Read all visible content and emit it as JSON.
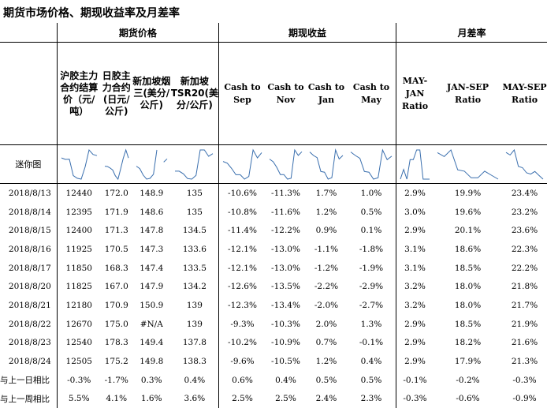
{
  "title": "期货市场价格、期现收益率及月差率",
  "groups": {
    "futures": "期货价格",
    "cash": "期现收益",
    "spread": "月差率"
  },
  "headers": [
    "沪胶主力合约结算价（元/吨）",
    "日胶主力合约(日元/公斤)",
    "新加坡烟三(美分/公斤)",
    "新加坡TSR20(美分/公斤)",
    "Cash to Sep",
    "Cash to Nov",
    "Cash to Jan",
    "Cash to May",
    "MAY-JAN Ratio",
    "JAN-SEP Ratio",
    "MAY-SEP Ratio"
  ],
  "sparkline_label": "迷你图",
  "rows": [
    [
      "2018/8/13",
      "12440",
      "172.0",
      "148.9",
      "135",
      "-10.6%",
      "-11.3%",
      "1.7%",
      "1.0%",
      "2.9%",
      "19.9%",
      "23.4%"
    ],
    [
      "2018/8/14",
      "12395",
      "171.9",
      "148.6",
      "135",
      "-10.8%",
      "-11.6%",
      "1.2%",
      "0.5%",
      "3.0%",
      "19.6%",
      "23.2%"
    ],
    [
      "2018/8/15",
      "12400",
      "171.3",
      "147.8",
      "134.5",
      "-11.4%",
      "-12.2%",
      "0.9%",
      "0.1%",
      "2.9%",
      "20.1%",
      "23.6%"
    ],
    [
      "2018/8/16",
      "11925",
      "170.5",
      "147.3",
      "133.6",
      "-12.1%",
      "-13.0%",
      "-1.1%",
      "-1.8%",
      "3.1%",
      "18.6%",
      "22.3%"
    ],
    [
      "2018/8/17",
      "11850",
      "168.3",
      "147.4",
      "133.5",
      "-12.1%",
      "-13.0%",
      "-1.2%",
      "-1.9%",
      "3.1%",
      "18.5%",
      "22.2%"
    ],
    [
      "2018/8/20",
      "11825",
      "167.0",
      "147.9",
      "134.2",
      "-12.6%",
      "-13.5%",
      "-2.2%",
      "-2.9%",
      "3.2%",
      "18.0%",
      "21.8%"
    ],
    [
      "2018/8/21",
      "12180",
      "170.9",
      "150.9",
      "139",
      "-12.3%",
      "-13.4%",
      "-2.0%",
      "-2.7%",
      "3.2%",
      "18.0%",
      "21.7%"
    ],
    [
      "2018/8/22",
      "12670",
      "175.0",
      "#N/A",
      "139",
      "-9.3%",
      "-10.3%",
      "2.0%",
      "1.3%",
      "2.9%",
      "18.5%",
      "21.9%"
    ],
    [
      "2018/8/23",
      "12540",
      "178.3",
      "149.4",
      "137.8",
      "-10.2%",
      "-10.9%",
      "0.7%",
      "-0.1%",
      "2.9%",
      "18.2%",
      "21.6%"
    ],
    [
      "2018/8/24",
      "12505",
      "175.2",
      "149.8",
      "138.3",
      "-9.6%",
      "-10.5%",
      "1.2%",
      "0.4%",
      "2.9%",
      "17.9%",
      "21.3%"
    ]
  ],
  "compare_rows": [
    [
      "与上一日相比",
      "-0.3%",
      "-1.7%",
      "0.3%",
      "0.4%",
      "0.6%",
      "0.4%",
      "0.5%",
      "0.5%",
      "-0.1%",
      "-0.2%",
      "-0.3%"
    ],
    [
      "与上一周相比",
      "5.5%",
      "4.1%",
      "1.6%",
      "3.6%",
      "2.5%",
      "2.5%",
      "2.4%",
      "2.3%",
      "-0.3%",
      "-0.6%",
      "-0.9%"
    ]
  ],
  "colors": {
    "sparkline": "#3a6fae",
    "grid": "#000000"
  }
}
